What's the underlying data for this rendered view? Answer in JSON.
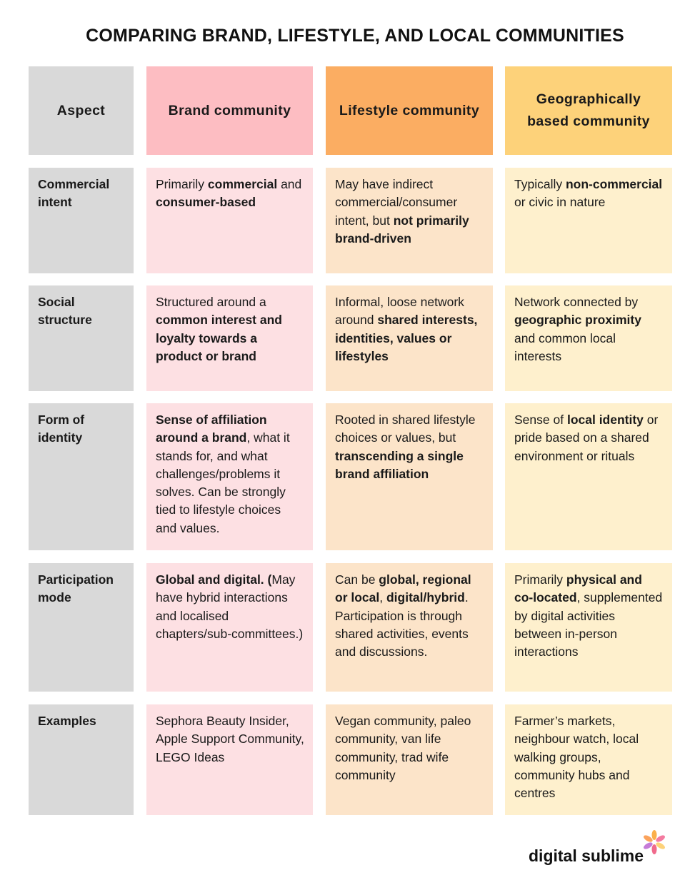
{
  "title": "COMPARING BRAND, LIFESTYLE, AND LOCAL COMMUNITIES",
  "table": {
    "header": [
      "Aspect",
      "Brand community",
      "Lifestyle community",
      "Geographically based community"
    ],
    "rows": [
      [
        [
          {
            "text": "Commercial intent",
            "bold": true
          }
        ],
        [
          {
            "text": "Primarily ",
            "bold": false
          },
          {
            "text": "commercial",
            "bold": true
          },
          {
            "text": " and ",
            "bold": false
          },
          {
            "text": "consumer-based",
            "bold": true
          }
        ],
        [
          {
            "text": "May have indirect commercial/consumer intent, but ",
            "bold": false
          },
          {
            "text": "not primarily brand-driven",
            "bold": true
          }
        ],
        [
          {
            "text": "Typically ",
            "bold": false
          },
          {
            "text": "non-commercial",
            "bold": true
          },
          {
            "text": " or civic in nature",
            "bold": false
          }
        ]
      ],
      [
        [
          {
            "text": "Social structure",
            "bold": true
          }
        ],
        [
          {
            "text": "Structured around a ",
            "bold": false
          },
          {
            "text": "common interest and loyalty towards a product or brand",
            "bold": true
          }
        ],
        [
          {
            "text": "Informal, loose network around ",
            "bold": false
          },
          {
            "text": "shared interests, identities, values or lifestyles",
            "bold": true
          }
        ],
        [
          {
            "text": "Network connected by ",
            "bold": false
          },
          {
            "text": "geographic proximity",
            "bold": true
          },
          {
            "text": " and common local interests",
            "bold": false
          }
        ]
      ],
      [
        [
          {
            "text": "Form of identity",
            "bold": true
          }
        ],
        [
          {
            "text": "Sense of affiliation around a brand",
            "bold": true
          },
          {
            "text": ", what it stands for, and what challenges/problems it solves. Can be strongly tied to lifestyle choices and values.",
            "bold": false
          }
        ],
        [
          {
            "text": "Rooted in shared lifestyle choices or values, but ",
            "bold": false
          },
          {
            "text": "transcending a single brand affiliation",
            "bold": true
          }
        ],
        [
          {
            "text": "Sense of ",
            "bold": false
          },
          {
            "text": "local identity",
            "bold": true
          },
          {
            "text": " or pride based on a shared environment or rituals",
            "bold": false
          }
        ]
      ],
      [
        [
          {
            "text": "Participation mode",
            "bold": true
          }
        ],
        [
          {
            "text": "Global  and digital. (",
            "bold": true
          },
          {
            "text": "May have hybrid interactions and localised chapters/sub-committees.)",
            "bold": false
          }
        ],
        [
          {
            "text": "Can be ",
            "bold": false
          },
          {
            "text": "global, regional or local",
            "bold": true
          },
          {
            "text": ", ",
            "bold": false
          },
          {
            "text": "digital/hybrid",
            "bold": true
          },
          {
            "text": ". Participation is through shared activities, events and discussions.",
            "bold": false
          }
        ],
        [
          {
            "text": "Primarily ",
            "bold": false
          },
          {
            "text": "physical and co-located",
            "bold": true
          },
          {
            "text": ", supplemented by digital activities between in-person interactions",
            "bold": false
          }
        ]
      ],
      [
        [
          {
            "text": "Examples",
            "bold": true
          }
        ],
        [
          {
            "text": "Sephora Beauty Insider, Apple Support Community, LEGO Ideas",
            "bold": false
          }
        ],
        [
          {
            "text": "Vegan community, paleo community, van life community, trad wife community",
            "bold": false
          }
        ],
        [
          {
            "text": "Farmer’s markets, neighbour watch, local walking groups, community hubs and centres",
            "bold": false
          }
        ]
      ]
    ]
  },
  "footer": {
    "brand": "digital sublime"
  }
}
